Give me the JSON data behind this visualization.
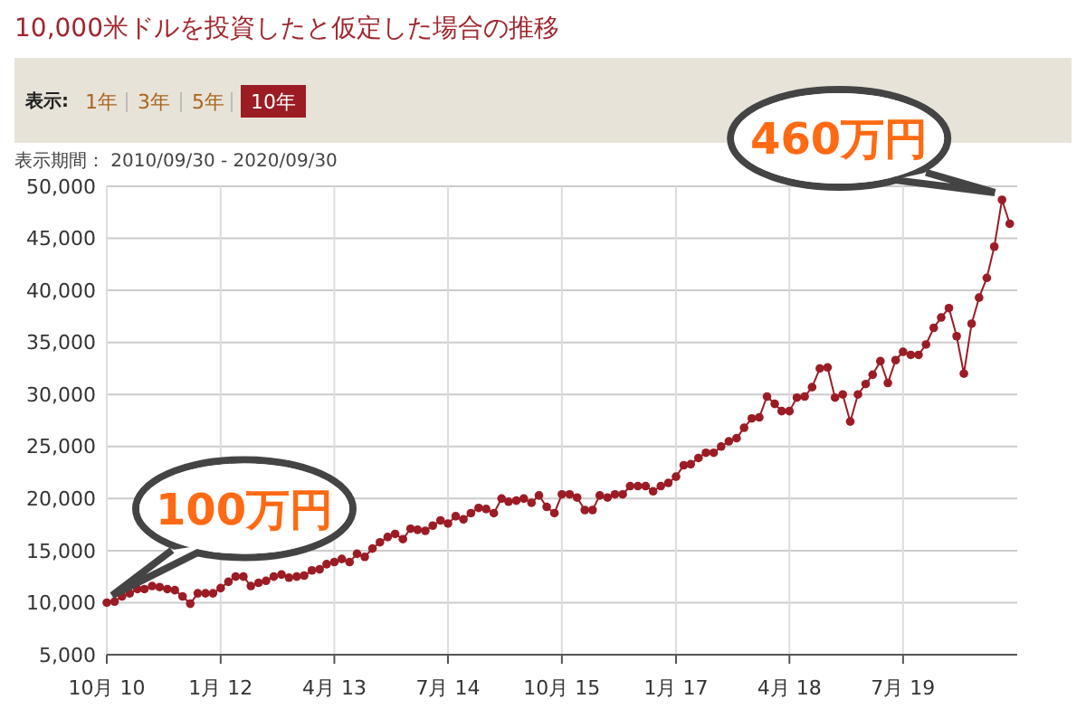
{
  "chart_data": {
    "type": "line",
    "title": "10,000米ドルを投資したと仮定した場合の推移",
    "subtitle": "表示期間： 2010/09/30 - 2020/09/30",
    "annotations": [
      "表示:",
      "1年",
      "3年",
      "5年",
      "10年",
      {
        "text": "100万円",
        "x": "2010-10",
        "y": 10000
      },
      {
        "text": "460万円",
        "x": "2020-08",
        "y": 48700
      }
    ],
    "x": [
      "2010-10",
      "2010-11",
      "2010-12",
      "2011-01",
      "2011-02",
      "2011-03",
      "2011-04",
      "2011-05",
      "2011-06",
      "2011-07",
      "2011-08",
      "2011-09",
      "2011-10",
      "2011-11",
      "2011-12",
      "2012-01",
      "2012-02",
      "2012-03",
      "2012-04",
      "2012-05",
      "2012-06",
      "2012-07",
      "2012-08",
      "2012-09",
      "2012-10",
      "2012-11",
      "2012-12",
      "2013-01",
      "2013-02",
      "2013-03",
      "2013-04",
      "2013-05",
      "2013-06",
      "2013-07",
      "2013-08",
      "2013-09",
      "2013-10",
      "2013-11",
      "2013-12",
      "2014-01",
      "2014-02",
      "2014-03",
      "2014-04",
      "2014-05",
      "2014-06",
      "2014-07",
      "2014-08",
      "2014-09",
      "2014-10",
      "2014-11",
      "2014-12",
      "2015-01",
      "2015-02",
      "2015-03",
      "2015-04",
      "2015-05",
      "2015-06",
      "2015-07",
      "2015-08",
      "2015-09",
      "2015-10",
      "2015-11",
      "2015-12",
      "2016-01",
      "2016-02",
      "2016-03",
      "2016-04",
      "2016-05",
      "2016-06",
      "2016-07",
      "2016-08",
      "2016-09",
      "2016-10",
      "2016-11",
      "2016-12",
      "2017-01",
      "2017-02",
      "2017-03",
      "2017-04",
      "2017-05",
      "2017-06",
      "2017-07",
      "2017-08",
      "2017-09",
      "2017-10",
      "2017-11",
      "2017-12",
      "2018-01",
      "2018-02",
      "2018-03",
      "2018-04",
      "2018-05",
      "2018-06",
      "2018-07",
      "2018-08",
      "2018-09",
      "2018-10",
      "2018-11",
      "2018-12",
      "2019-01",
      "2019-02",
      "2019-03",
      "2019-04",
      "2019-05",
      "2019-06",
      "2019-07",
      "2019-08",
      "2019-09",
      "2019-10",
      "2019-11",
      "2019-12",
      "2020-01",
      "2020-02",
      "2020-03",
      "2020-04",
      "2020-05",
      "2020-06",
      "2020-07",
      "2020-08",
      "2020-09"
    ],
    "series": [
      {
        "color": "#9b1c25",
        "values": [
          10000,
          10100,
          10600,
          10900,
          11300,
          11300,
          11600,
          11500,
          11300,
          11200,
          10600,
          9900,
          10900,
          10900,
          10900,
          11400,
          12000,
          12500,
          12500,
          11600,
          11900,
          12100,
          12500,
          12700,
          12400,
          12500,
          12600,
          13100,
          13200,
          13700,
          13900,
          14200,
          13900,
          14700,
          14400,
          15200,
          15800,
          16300,
          16600,
          16100,
          17100,
          17000,
          16900,
          17400,
          17900,
          17600,
          18300,
          18000,
          18600,
          19100,
          19000,
          18600,
          20000,
          19700,
          19800,
          20000,
          19600,
          20300,
          19200,
          18600,
          20400,
          20400,
          20100,
          18900,
          18900,
          20300,
          20100,
          20400,
          20400,
          21200,
          21200,
          21200,
          20700,
          21200,
          21500,
          22100,
          23200,
          23300,
          23900,
          24400,
          24400,
          25000,
          25500,
          25800,
          26800,
          27700,
          27800,
          29800,
          29100,
          28400,
          28400,
          29700,
          29800,
          30700,
          32500,
          32600,
          29700,
          30000,
          27400,
          30000,
          31000,
          31900,
          33200,
          31100,
          33300,
          34100,
          33800,
          33800,
          34800,
          36400,
          37400,
          38300,
          35600,
          32000,
          36800,
          39300,
          41200,
          44200,
          48700,
          46400
        ]
      }
    ],
    "xlim": [
      "2010-10",
      "2020-10"
    ],
    "xticks": [
      {
        "value": "2010-10",
        "label": "10月 10"
      },
      {
        "value": "2012-01",
        "label": "1月 12"
      },
      {
        "value": "2013-04",
        "label": "4月 13"
      },
      {
        "value": "2014-07",
        "label": "7月 14"
      },
      {
        "value": "2015-10",
        "label": "10月 15"
      },
      {
        "value": "2017-01",
        "label": "1月 17"
      },
      {
        "value": "2018-04",
        "label": "4月 18"
      },
      {
        "value": "2019-07",
        "label": "7月 19"
      }
    ],
    "ylim": [
      5000,
      50000
    ],
    "yticks": [
      {
        "value": 5000,
        "label": "5,000"
      },
      {
        "value": 10000,
        "label": "10,000"
      },
      {
        "value": 15000,
        "label": "15,000"
      },
      {
        "value": 20000,
        "label": "20,000"
      },
      {
        "value": 25000,
        "label": "25,000"
      },
      {
        "value": 30000,
        "label": "30,000"
      },
      {
        "value": 35000,
        "label": "35,000"
      },
      {
        "value": 40000,
        "label": "40,000"
      },
      {
        "value": 45000,
        "label": "45,000"
      },
      {
        "value": 50000,
        "label": "50,000"
      }
    ],
    "grid": true,
    "marker": "circle",
    "line_style": "solid"
  }
}
